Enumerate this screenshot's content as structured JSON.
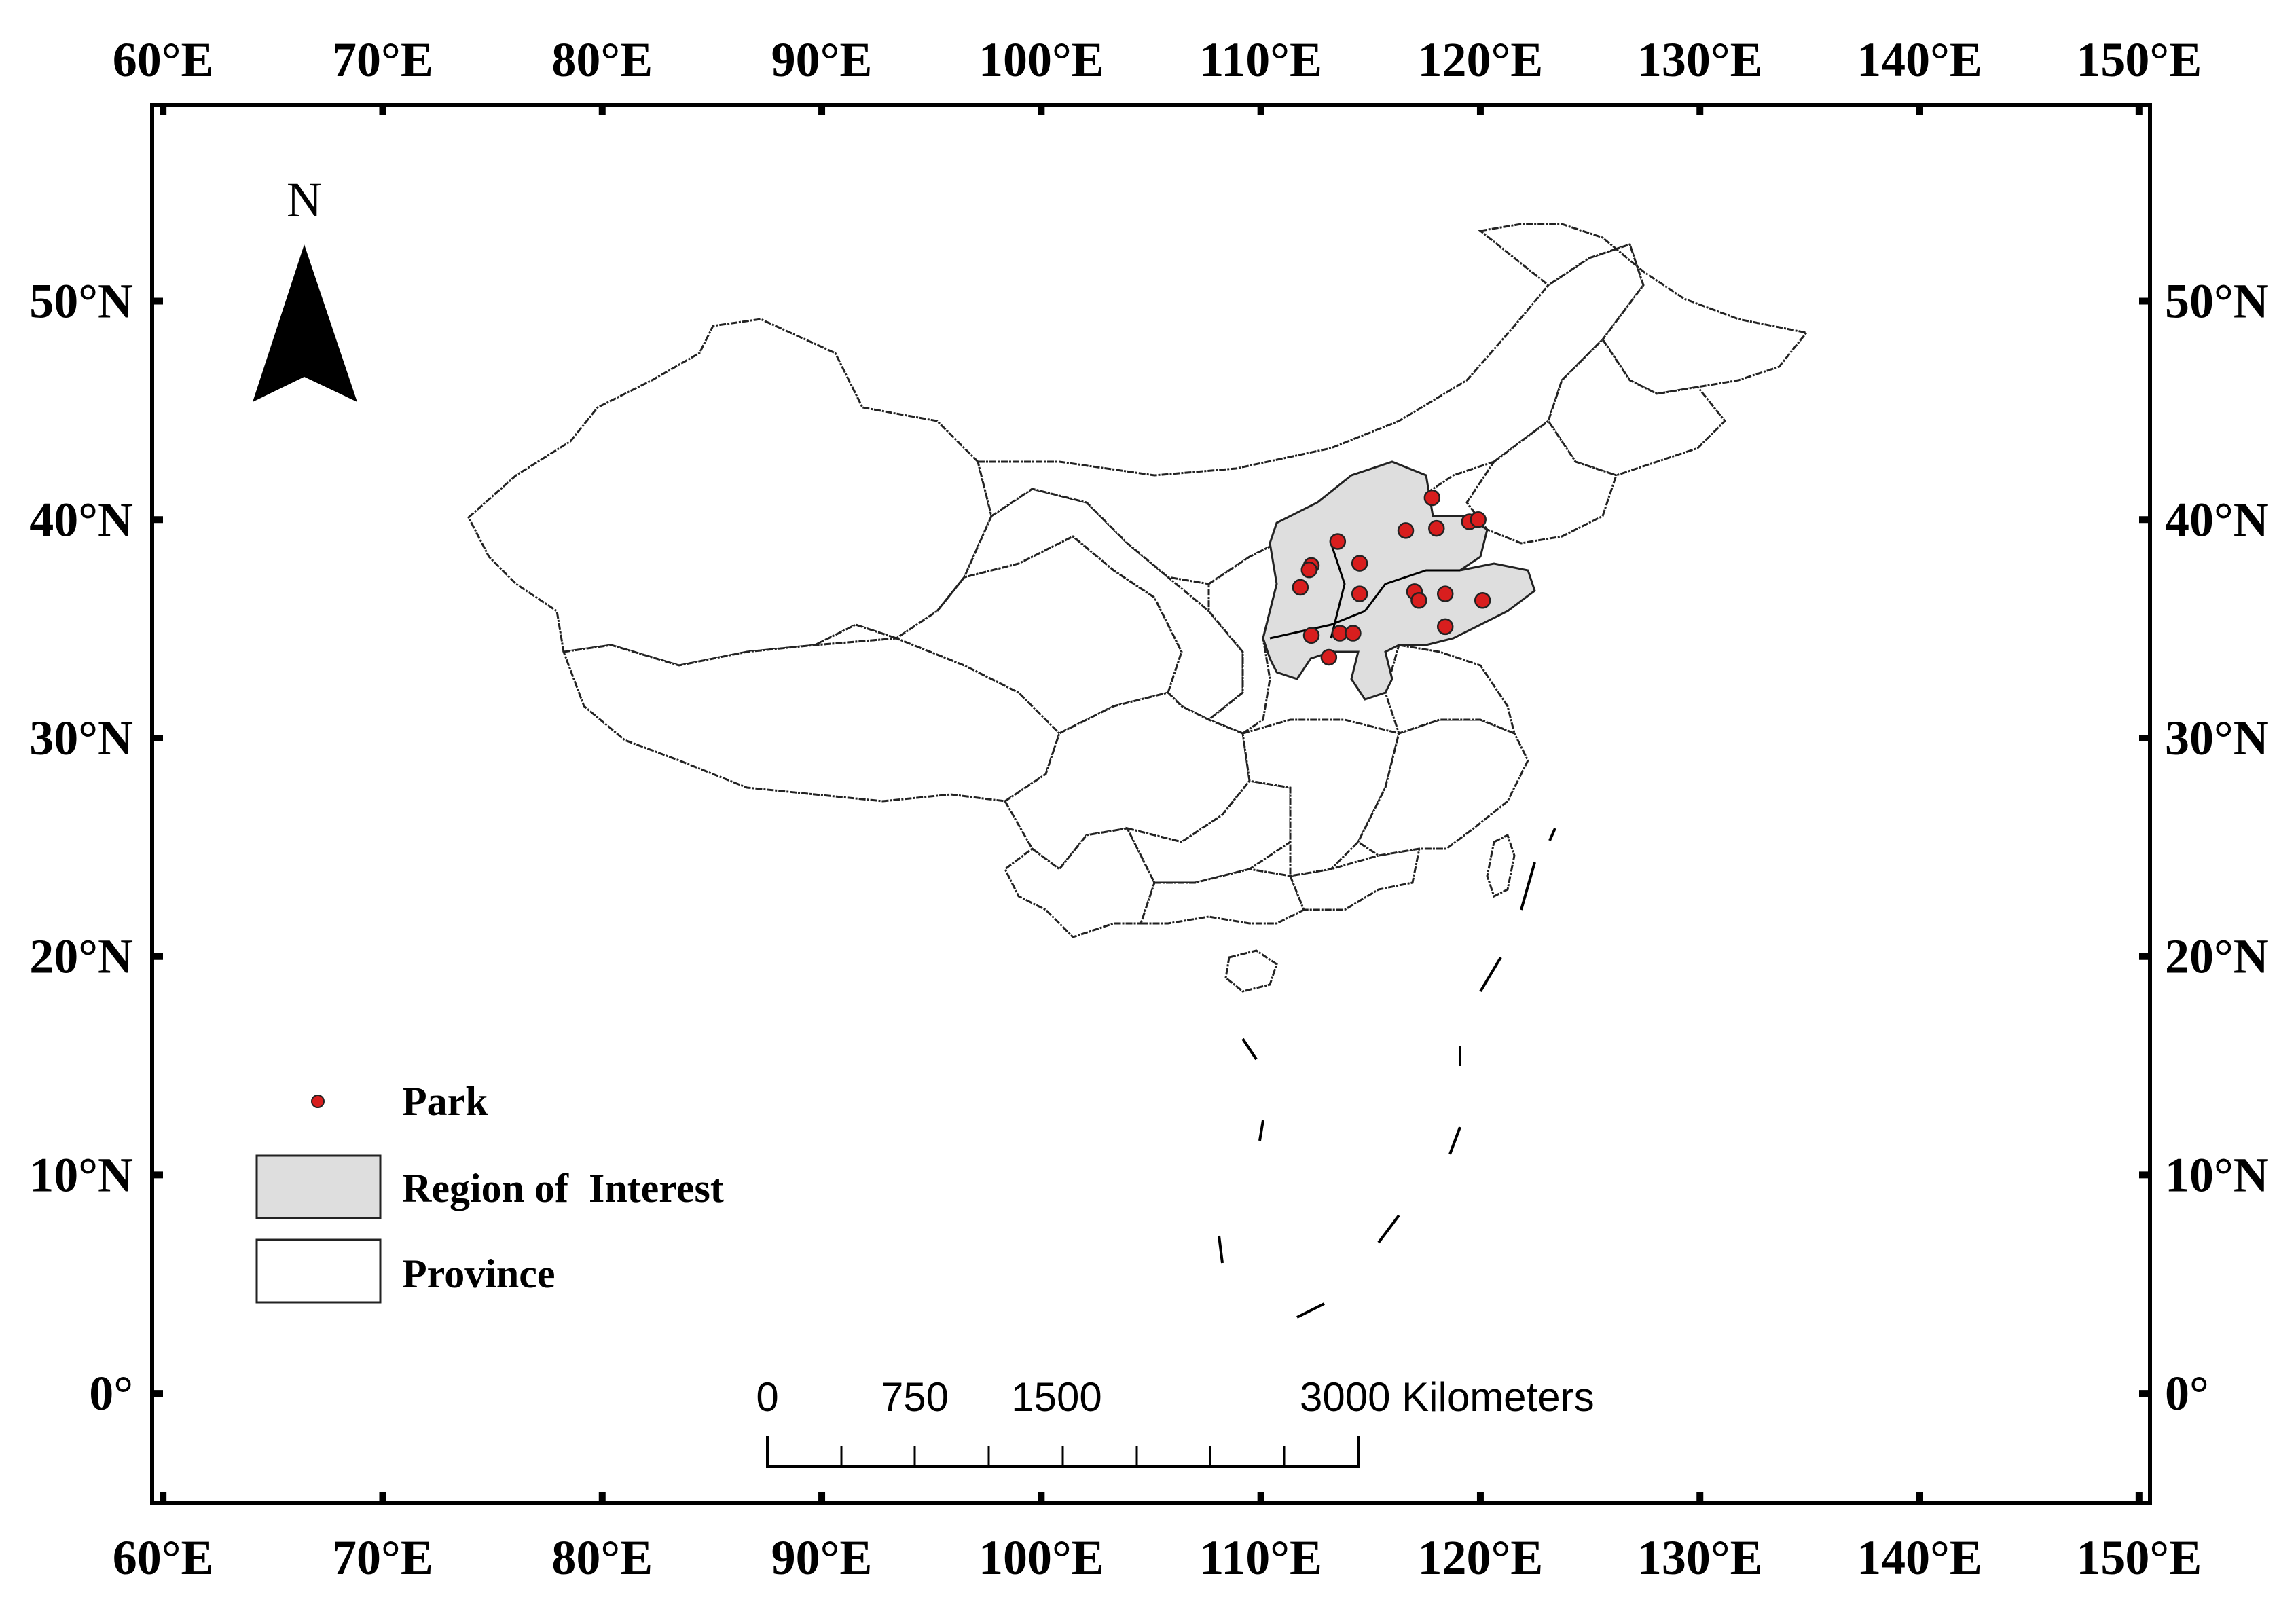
{
  "map": {
    "axes": {
      "lon_labels": [
        "60°E",
        "70°E",
        "80°E",
        "90°E",
        "100°E",
        "110°E",
        "120°E",
        "130°E",
        "140°E",
        "150°E"
      ],
      "lat_labels": [
        "50°N",
        "40°N",
        "30°N",
        "20°N",
        "10°N",
        "0°"
      ],
      "lon_values": [
        60,
        70,
        80,
        90,
        100,
        110,
        120,
        130,
        140,
        150
      ],
      "lat_values": [
        50,
        40,
        30,
        20,
        10,
        0
      ],
      "lon_range": [
        59.5,
        150.5
      ],
      "lat_range": [
        -5,
        59
      ]
    },
    "north_arrow": {
      "label": "N"
    },
    "legend": {
      "items": [
        {
          "label": "Park",
          "symbol": "red-dot"
        },
        {
          "label": "Region of  Interest",
          "symbol": "gray-box"
        },
        {
          "label": "Province",
          "symbol": "white-box"
        }
      ]
    },
    "scale_bar": {
      "labels": [
        "0",
        "750",
        "1500",
        "3000 Kilometers"
      ],
      "values_km": [
        0,
        750,
        1500,
        3000
      ]
    },
    "colors": {
      "park": "#d81e1e",
      "region_of_interest": "#dedede",
      "province": "#ffffff",
      "outline": "#000000"
    },
    "parks": [
      [
        112.3,
        37.9
      ],
      [
        112.2,
        37.7
      ],
      [
        111.8,
        36.9
      ],
      [
        113.5,
        39.0
      ],
      [
        114.5,
        38.0
      ],
      [
        114.5,
        36.6
      ],
      [
        116.6,
        39.5
      ],
      [
        117.8,
        41.0
      ],
      [
        118.0,
        39.6
      ],
      [
        119.5,
        39.9
      ],
      [
        119.9,
        40.0
      ],
      [
        117.0,
        36.7
      ],
      [
        117.2,
        36.3
      ],
      [
        118.4,
        36.6
      ],
      [
        120.1,
        36.3
      ],
      [
        118.4,
        35.1
      ],
      [
        112.3,
        34.7
      ],
      [
        113.6,
        34.8
      ],
      [
        114.2,
        34.8
      ],
      [
        113.1,
        33.7
      ]
    ]
  }
}
